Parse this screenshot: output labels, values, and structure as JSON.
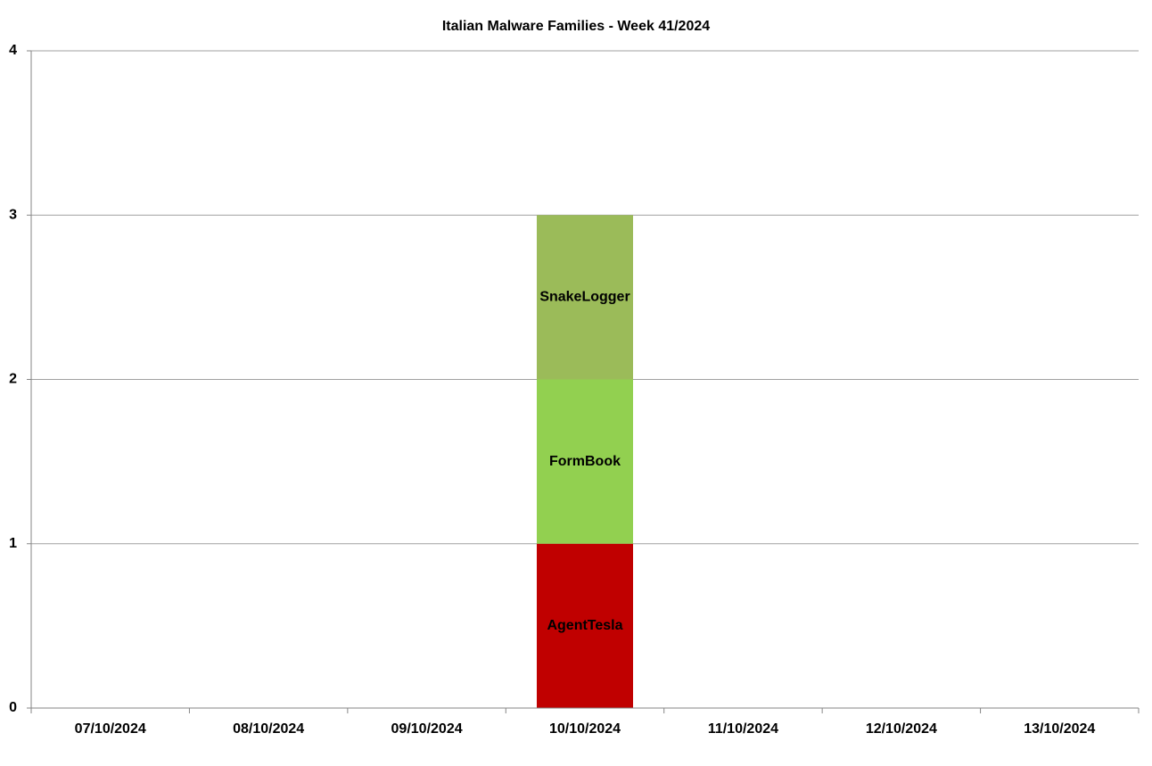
{
  "chart_data": {
    "type": "stacked_bar",
    "title": "Italian Malware Families - Week 41/2024",
    "categories": [
      "07/10/2024",
      "08/10/2024",
      "09/10/2024",
      "10/10/2024",
      "11/10/2024",
      "12/10/2024",
      "13/10/2024"
    ],
    "series": [
      {
        "name": "AgentTesla",
        "color": "#c00000",
        "values": [
          0,
          0,
          0,
          1,
          0,
          0,
          0
        ]
      },
      {
        "name": "FormBook",
        "color": "#92d050",
        "values": [
          0,
          0,
          0,
          1,
          0,
          0,
          0
        ]
      },
      {
        "name": "SnakeLogger",
        "color": "#9bbb59",
        "values": [
          0,
          0,
          0,
          1,
          0,
          0,
          0
        ]
      }
    ],
    "ylim": [
      0,
      4
    ],
    "yticks": [
      0,
      1,
      2,
      3,
      4
    ],
    "grid": true
  }
}
